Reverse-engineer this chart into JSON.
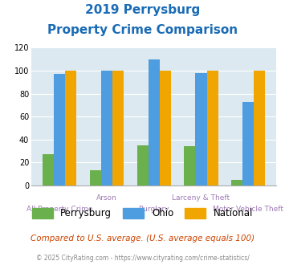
{
  "title_line1": "2019 Perrysburg",
  "title_line2": "Property Crime Comparison",
  "perrysburg_vals": [
    27,
    13,
    35,
    34,
    5
  ],
  "ohio_vals": [
    97,
    100,
    110,
    98,
    73
  ],
  "national_vals": [
    100,
    100,
    100,
    100,
    100
  ],
  "perrysburg_color": "#6ab04c",
  "ohio_color": "#4d9de0",
  "national_color": "#f0a500",
  "plot_bg": "#dce9f0",
  "title_color": "#1a6bb5",
  "xlabel_color_top": "#9e7bb5",
  "xlabel_color_bottom": "#9e7bb5",
  "footer_note": "Compared to U.S. average. (U.S. average equals 100)",
  "footer_copy": "© 2025 CityRating.com - https://www.cityrating.com/crime-statistics/",
  "legend_labels": [
    "Perrysburg",
    "Ohio",
    "National"
  ],
  "xtick_top": [
    "Arson",
    "Larceny & Theft",
    ""
  ],
  "xtick_bottom": [
    "All Property Crime",
    "Burglary",
    "Motor Vehicle Theft"
  ],
  "ylim": [
    0,
    120
  ],
  "yticks": [
    0,
    20,
    40,
    60,
    80,
    100,
    120
  ]
}
